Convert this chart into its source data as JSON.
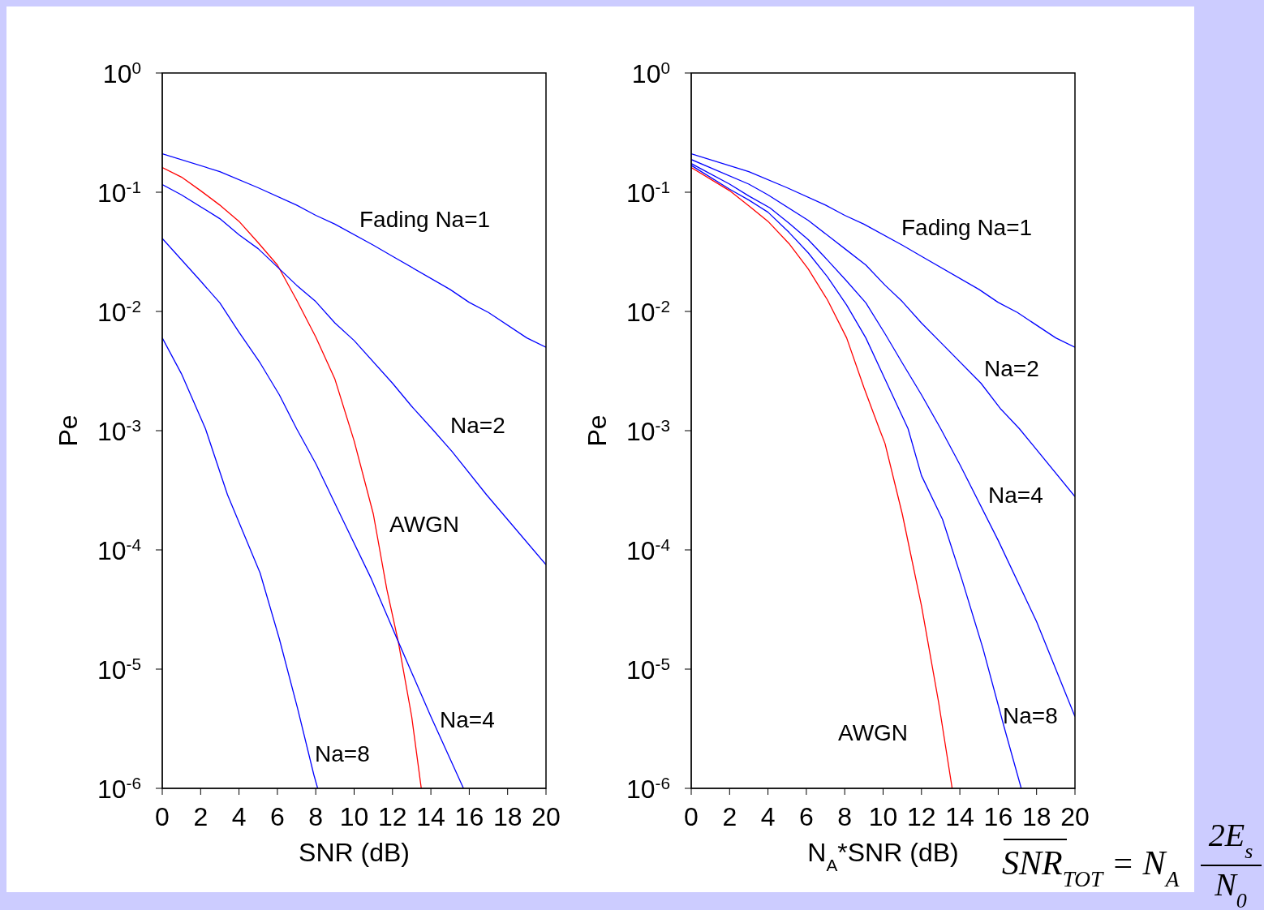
{
  "chart_data": [
    {
      "type": "line",
      "xlabel": "SNR (dB)",
      "ylabel": "Pe",
      "log": "y",
      "xlim": [
        0,
        20
      ],
      "xticks": [
        0,
        2,
        4,
        6,
        8,
        10,
        12,
        14,
        16,
        18,
        20
      ],
      "ylim": [
        1e-06,
        1
      ],
      "yticks": [
        {
          "value": 1e-06,
          "label": "10$^{-6}$"
        },
        {
          "value": 1e-05,
          "label": "10$^{-5}$"
        },
        {
          "value": 0.0001,
          "label": "10$^{-4}$"
        },
        {
          "value": 0.001,
          "label": "10$^{-3}$"
        },
        {
          "value": 0.01,
          "label": "10$^{-2}$"
        },
        {
          "value": 0.1,
          "label": "10$^{-1}$"
        },
        {
          "value": 1,
          "label": "10$^{0}$"
        }
      ],
      "marker": "none",
      "line_style": "solid",
      "series": [
        {
          "color": "#0000ff",
          "x": [
            0,
            3,
            5,
            7,
            8,
            9,
            11,
            12,
            15,
            16,
            17,
            19,
            20
          ],
          "values": [
            0.21,
            0.149,
            0.109,
            0.078,
            0.064,
            0.054,
            0.036,
            0.029,
            0.0153,
            0.0119,
            0.0098,
            0.006,
            0.005
          ]
        },
        {
          "color": "#ff0000",
          "x": [
            0,
            1,
            2,
            3,
            4,
            5,
            6,
            7,
            8,
            9,
            10,
            11,
            11.7,
            12.3,
            13,
            13.5
          ],
          "values": [
            0.161,
            0.134,
            0.103,
            0.078,
            0.057,
            0.0377,
            0.0245,
            0.0125,
            0.0061,
            0.0027,
            0.00082,
            0.0002,
            4.7e-05,
            1.7e-05,
            4e-06,
            1e-06
          ]
        },
        {
          "color": "#0000ff",
          "x": [
            0,
            1,
            3,
            4,
            5,
            7,
            8,
            9,
            10,
            12,
            13,
            14.1,
            15.1,
            16.9,
            20
          ],
          "values": [
            0.116,
            0.095,
            0.06,
            0.044,
            0.0336,
            0.0166,
            0.0121,
            0.008,
            0.0057,
            0.0025,
            0.0016,
            0.00102,
            0.00067,
            0.00029,
            7.5e-05
          ]
        },
        {
          "color": "#0000ff",
          "x": [
            0,
            2,
            3,
            4,
            5.1,
            6.1,
            7,
            8,
            9.4,
            10.9,
            12.3,
            14,
            15.7
          ],
          "values": [
            0.041,
            0.018,
            0.0118,
            0.0067,
            0.0037,
            0.002,
            0.00104,
            0.00053,
            0.00018,
            5.7e-05,
            1.7e-05,
            4e-06,
            1e-06
          ]
        },
        {
          "color": "#0000ff",
          "x": [
            0,
            1,
            2.25,
            3.4,
            5.1,
            6.1,
            7.05,
            7.9,
            8.1
          ],
          "values": [
            0.006,
            0.003,
            0.00104,
            0.00029,
            6.4e-05,
            1.8e-05,
            4.7e-06,
            1.3e-06,
            1e-06
          ]
        }
      ],
      "annotations": [
        "Fading Na=1",
        "Na=2",
        "AWGN",
        "Na=4",
        "Na=8"
      ]
    },
    {
      "type": "line",
      "xlabel": "N$_{A}$*SNR (dB)",
      "ylabel": "Pe",
      "log": "y",
      "xlim": [
        0,
        20
      ],
      "xticks": [
        0,
        2,
        4,
        6,
        8,
        10,
        12,
        14,
        16,
        18,
        20
      ],
      "ylim": [
        1e-06,
        1
      ],
      "yticks": [
        {
          "value": 1e-06,
          "label": "10$^{-6}$"
        },
        {
          "value": 1e-05,
          "label": "10$^{-5}$"
        },
        {
          "value": 0.0001,
          "label": "10$^{-4}$"
        },
        {
          "value": 0.001,
          "label": "10$^{-3}$"
        },
        {
          "value": 0.01,
          "label": "10$^{-2}$"
        },
        {
          "value": 0.1,
          "label": "10$^{-1}$"
        },
        {
          "value": 1,
          "label": "10$^{0}$"
        }
      ],
      "marker": "none",
      "line_style": "solid",
      "series": [
        {
          "color": "#0000ff",
          "x": [
            0,
            3,
            5,
            7,
            8,
            9,
            11,
            12,
            15,
            16,
            17,
            19,
            20
          ],
          "values": [
            0.21,
            0.149,
            0.109,
            0.078,
            0.064,
            0.054,
            0.036,
            0.029,
            0.0153,
            0.0119,
            0.0098,
            0.006,
            0.005
          ]
        },
        {
          "color": "#0000ff",
          "x": [
            0,
            3,
            4,
            6.1,
            8.1,
            9.1,
            10.1,
            11,
            12,
            13,
            15.1,
            16.1,
            17.1,
            20
          ],
          "values": [
            0.188,
            0.117,
            0.095,
            0.058,
            0.0327,
            0.0245,
            0.0166,
            0.0121,
            0.008,
            0.0055,
            0.0025,
            0.00154,
            0.00104,
            0.00028
          ]
        },
        {
          "color": "#0000ff",
          "x": [
            0,
            2,
            3,
            4.1,
            5.1,
            6.1,
            7.1,
            8.1,
            9.1,
            10.1,
            11,
            12,
            13,
            14,
            16,
            18,
            20
          ],
          "values": [
            0.174,
            0.117,
            0.093,
            0.074,
            0.055,
            0.04,
            0.027,
            0.018,
            0.0118,
            0.0065,
            0.0037,
            0.002,
            0.00104,
            0.00052,
            0.00012,
            2.5e-05,
            4e-06
          ]
        },
        {
          "color": "#0000ff",
          "x": [
            0,
            2,
            3,
            4,
            5.1,
            6.1,
            7.1,
            8.1,
            9.1,
            10.1,
            11.3,
            12,
            13.1,
            14.1,
            15.2,
            16.3,
            17.2
          ],
          "values": [
            0.168,
            0.106,
            0.086,
            0.068,
            0.046,
            0.031,
            0.0195,
            0.0113,
            0.006,
            0.0027,
            0.00104,
            0.00042,
            0.00018,
            5.7e-05,
            1.5e-05,
            3.3e-06,
            1e-06
          ]
        },
        {
          "color": "#ff0000",
          "x": [
            0,
            2,
            3,
            4,
            5.1,
            6.1,
            7.1,
            8.1,
            9,
            9.8,
            10.1,
            11,
            12,
            12.9,
            13.6
          ],
          "values": [
            0.161,
            0.103,
            0.077,
            0.057,
            0.037,
            0.0227,
            0.0125,
            0.006,
            0.0023,
            0.00104,
            0.00078,
            0.0002,
            3.4e-05,
            5.2e-06,
            1e-06
          ]
        }
      ],
      "annotations": [
        "Fading Na=1",
        "Na=2",
        "Na=4",
        "Na=8",
        "AWGN",
        "SNR$_{TOT}$ = N$_{A}$",
        "2E$_{s}$",
        "N$_{0}$"
      ]
    }
  ]
}
